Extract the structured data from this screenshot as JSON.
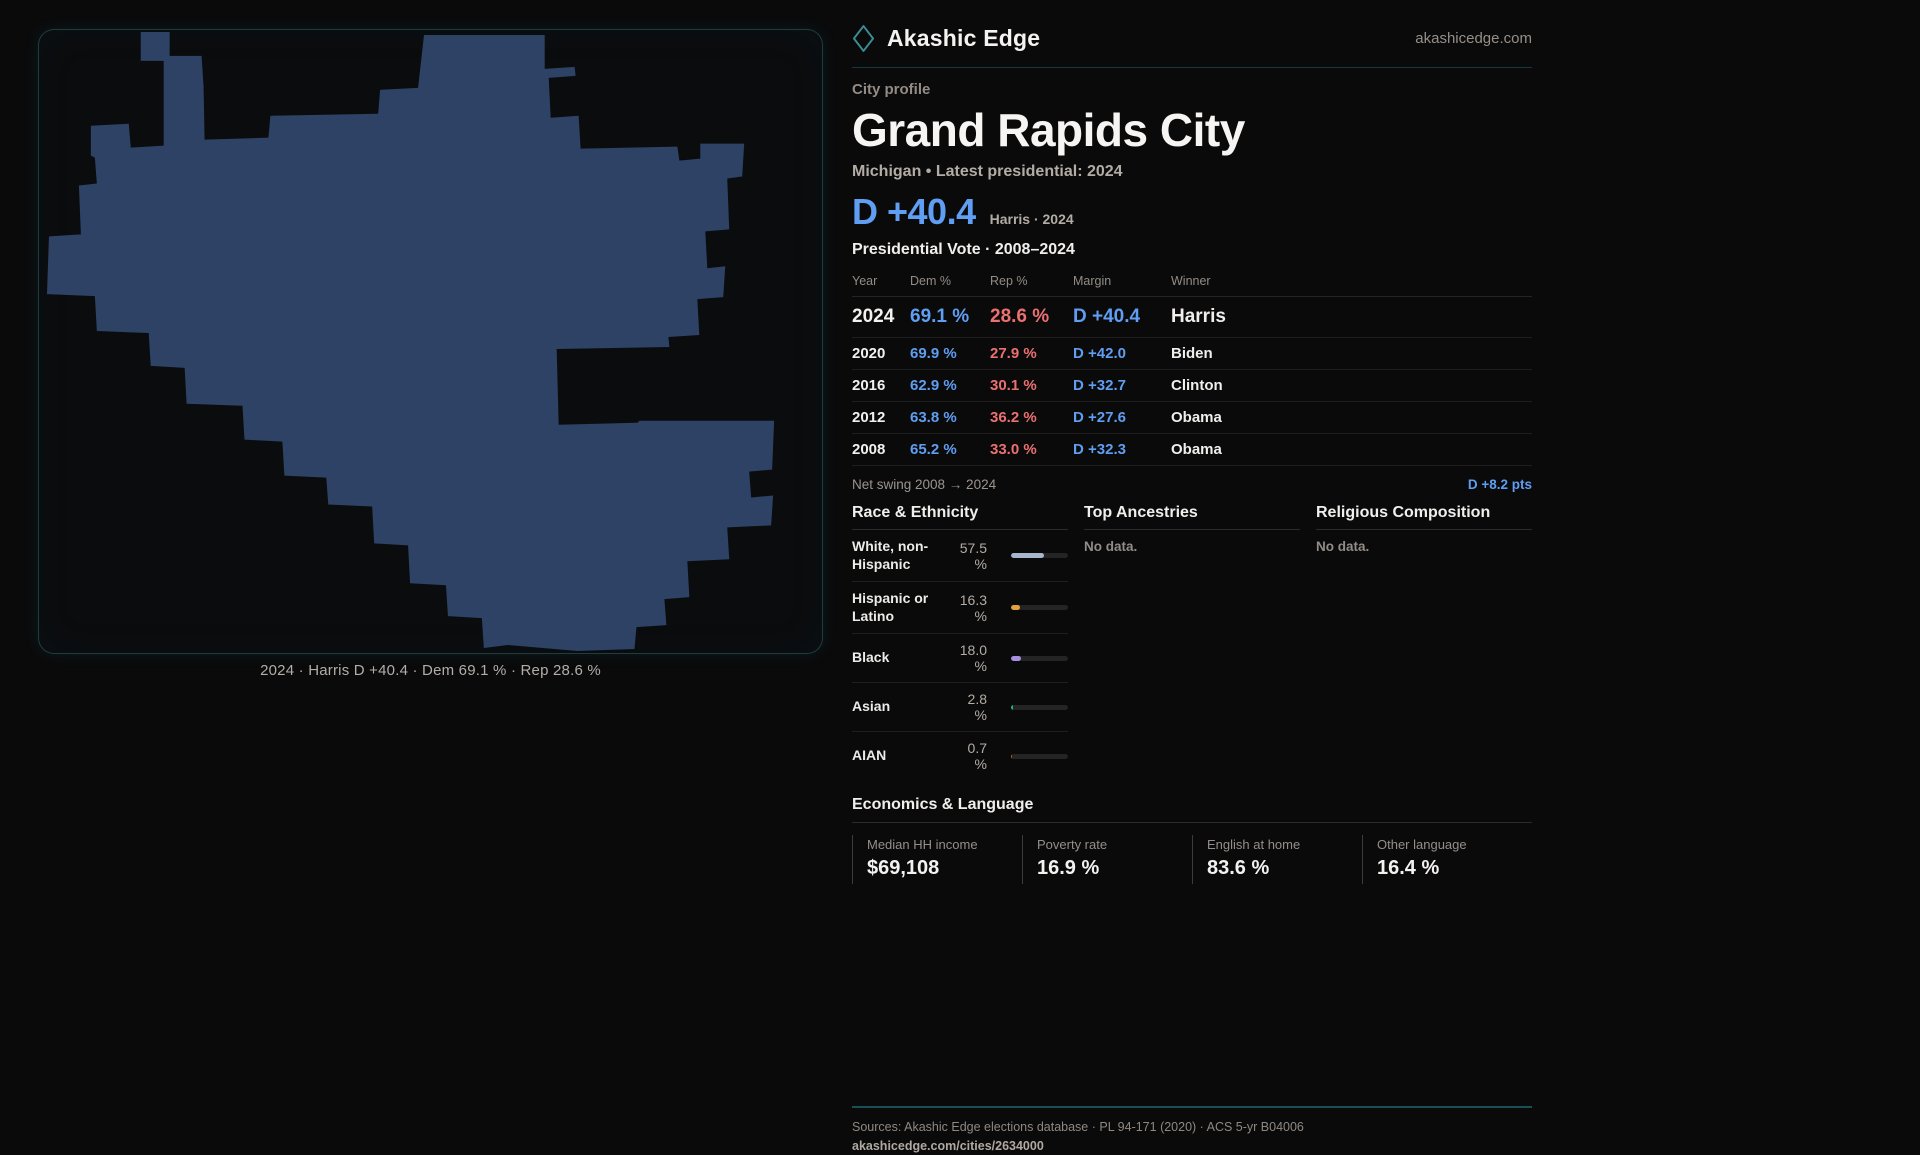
{
  "brand": {
    "name": "Akashic Edge",
    "site": "akashicedge.com"
  },
  "profile": {
    "eyebrow": "City profile",
    "title": "Grand Rapids City",
    "subtitle": "Michigan • Latest presidential: 2024",
    "headline_margin": "D +40.4",
    "headline_note": "Harris · 2024"
  },
  "map": {
    "caption": "2024 · Harris D +40.4 · Dem 69.1 % · Rep 28.6 %",
    "shape_color": "#2d4264"
  },
  "elections": {
    "title": "Presidential Vote · 2008–2024",
    "columns": {
      "year": "Year",
      "dem": "Dem %",
      "rep": "Rep %",
      "margin": "Margin",
      "winner": "Winner"
    },
    "rows": [
      {
        "year": "2024",
        "dem": "69.1 %",
        "rep": "28.6 %",
        "margin": "D +40.4",
        "winner": "Harris"
      },
      {
        "year": "2020",
        "dem": "69.9 %",
        "rep": "27.9 %",
        "margin": "D +42.0",
        "winner": "Biden"
      },
      {
        "year": "2016",
        "dem": "62.9 %",
        "rep": "30.1 %",
        "margin": "D +32.7",
        "winner": "Clinton"
      },
      {
        "year": "2012",
        "dem": "63.8 %",
        "rep": "36.2 %",
        "margin": "D +27.6",
        "winner": "Obama"
      },
      {
        "year": "2008",
        "dem": "65.2 %",
        "rep": "33.0 %",
        "margin": "D +32.3",
        "winner": "Obama"
      }
    ],
    "net_swing_label": "Net swing 2008 → 2024",
    "net_swing_value": "D +8.2 pts"
  },
  "race": {
    "title": "Race & Ethnicity",
    "rows": [
      {
        "label": "White, non-Hispanic",
        "value": "57.5 %",
        "pct": 57.5,
        "color": "#a6b7cd"
      },
      {
        "label": "Hispanic or Latino",
        "value": "16.3 %",
        "pct": 16.3,
        "color": "#e0a23c"
      },
      {
        "label": "Black",
        "value": "18.0 %",
        "pct": 18.0,
        "color": "#a78fe0"
      },
      {
        "label": "Asian",
        "value": "2.8 %",
        "pct": 2.8,
        "color": "#1fb871"
      },
      {
        "label": "AIAN",
        "value": "0.7 %",
        "pct": 0.7,
        "color": "#b85c1c"
      }
    ]
  },
  "ancestries": {
    "title": "Top Ancestries",
    "empty": "No data."
  },
  "religion": {
    "title": "Religious Composition",
    "empty": "No data."
  },
  "economics": {
    "title": "Economics & Language",
    "stats": [
      {
        "label": "Median HH income",
        "value": "$69,108"
      },
      {
        "label": "Poverty rate",
        "value": "16.9 %"
      },
      {
        "label": "English at home",
        "value": "83.6 %"
      },
      {
        "label": "Other language",
        "value": "16.4 %"
      }
    ]
  },
  "footer": {
    "sources": "Sources: Akashic Edge elections database · PL 94-171 (2020) · ACS 5-yr B04006",
    "permalink": "akashicedge.com/cities/2634000"
  },
  "colors": {
    "dem": "#5f9ef2",
    "rep": "#ed7070",
    "accent_teal": "#1a4f56"
  }
}
